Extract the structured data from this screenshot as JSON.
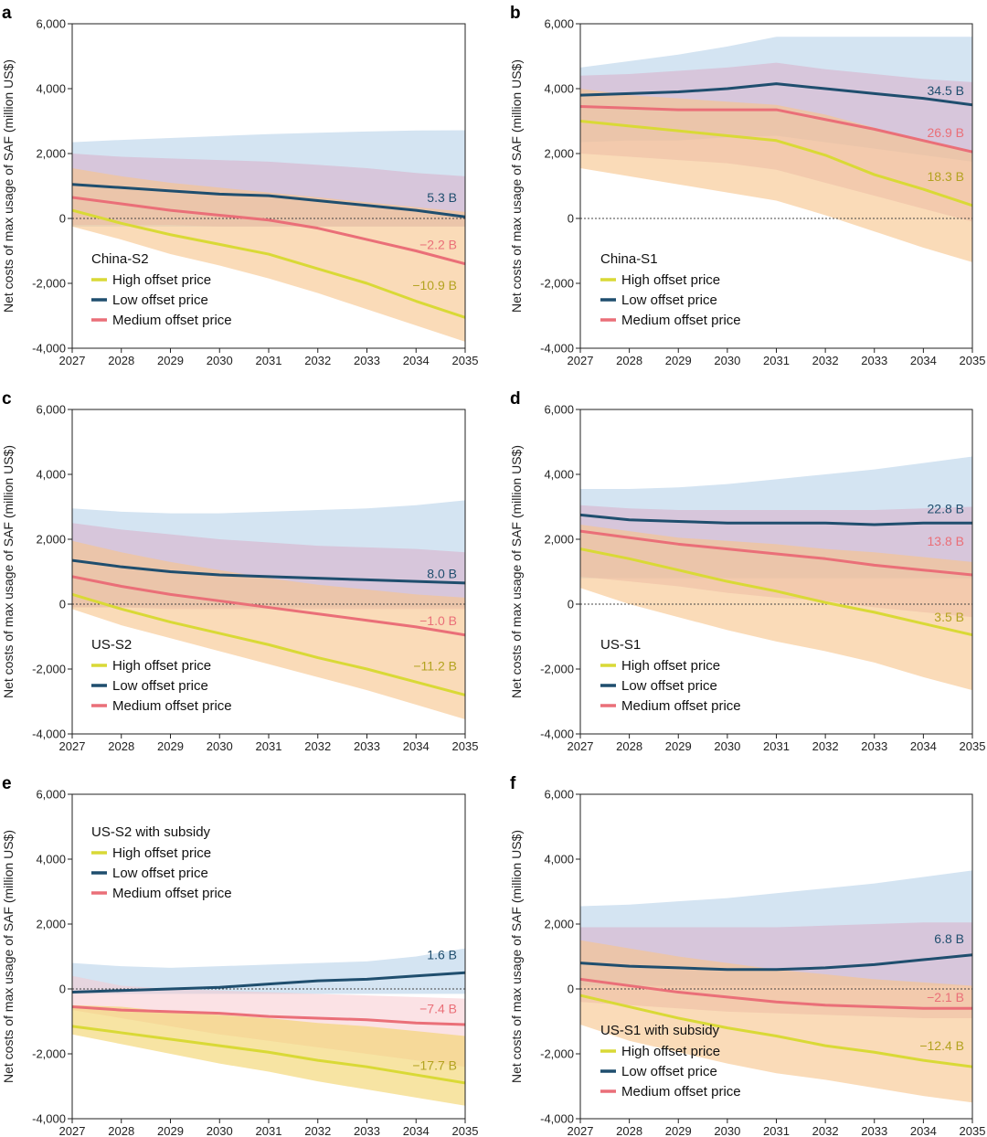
{
  "figure": {
    "ylabel": "Net costs of max usage of SAF (million US$)",
    "x_ticks": [
      "2027",
      "2028",
      "2029",
      "2030",
      "2031",
      "2032",
      "2033",
      "2034",
      "2035"
    ],
    "y_ticks": [
      "-4,000",
      "-2,000",
      "0",
      "2,000",
      "4,000",
      "6,000"
    ],
    "legend": {
      "high": "High offset price",
      "low": "Low offset price",
      "medium": "Medium offset price"
    },
    "colors": {
      "high": "#d9d936",
      "low": "#1f4e6e",
      "medium": "#ea6f78",
      "high_band": "#f7c58c",
      "low_band": "#a9c9e6",
      "medium_band": "#d9a8c4",
      "high_band_e": "#f2d36a",
      "medium_band_e": "#f8c6cc"
    }
  },
  "chart_data": [
    {
      "panel": "a",
      "type": "line",
      "scenario": "China-S2",
      "x": [
        2027,
        2028,
        2029,
        2030,
        2031,
        2032,
        2033,
        2034,
        2035
      ],
      "ylim": [
        -4000,
        6000
      ],
      "xlabel": "",
      "ylabel": "Net costs of max usage of SAF (million US$)",
      "series": [
        {
          "name": "High offset price",
          "key": "high",
          "values": [
            250,
            -150,
            -500,
            -800,
            -1100,
            -1550,
            -2000,
            -2550,
            -3050
          ],
          "band_low": [
            -250,
            -650,
            -1100,
            -1450,
            -1850,
            -2300,
            -2800,
            -3300,
            -3800
          ],
          "band_high": [
            1550,
            1300,
            1100,
            950,
            800,
            650,
            500,
            350,
            200
          ],
          "total": "-10.9 B"
        },
        {
          "name": "Low offset price",
          "key": "low",
          "values": [
            1050,
            950,
            850,
            750,
            700,
            550,
            400,
            250,
            50
          ],
          "band_low": [
            -250,
            -250,
            -250,
            -250,
            -250,
            -250,
            -250,
            -250,
            -250
          ],
          "band_high": [
            2350,
            2420,
            2480,
            2540,
            2600,
            2640,
            2680,
            2710,
            2720
          ],
          "total": "5.3 B"
        },
        {
          "name": "Medium offset price",
          "key": "medium",
          "values": [
            650,
            450,
            250,
            100,
            -50,
            -300,
            -650,
            -1000,
            -1400
          ],
          "band_low": [
            -200,
            -200,
            -200,
            -250,
            -250,
            -250,
            -250,
            -250,
            -250
          ],
          "band_high": [
            2000,
            1900,
            1850,
            1800,
            1750,
            1650,
            1550,
            1400,
            1300
          ],
          "total": "-2.2 B"
        }
      ]
    },
    {
      "panel": "b",
      "type": "line",
      "scenario": "China-S1",
      "x": [
        2027,
        2028,
        2029,
        2030,
        2031,
        2032,
        2033,
        2034,
        2035
      ],
      "ylim": [
        -4000,
        6000
      ],
      "xlabel": "",
      "ylabel": "Net costs of max usage of SAF (million US$)",
      "series": [
        {
          "name": "High offset price",
          "key": "high",
          "values": [
            3000,
            2850,
            2700,
            2550,
            2400,
            1950,
            1350,
            900,
            400
          ],
          "band_low": [
            1550,
            1300,
            1050,
            800,
            550,
            100,
            -400,
            -900,
            -1350
          ],
          "band_high": [
            4000,
            3800,
            3700,
            3600,
            3500,
            3200,
            2800,
            2400,
            2000
          ],
          "total": "18.3 B"
        },
        {
          "name": "Low offset price",
          "key": "low",
          "values": [
            3800,
            3850,
            3900,
            4000,
            4150,
            4000,
            3850,
            3700,
            3500
          ],
          "band_low": [
            2350,
            2400,
            2400,
            2500,
            2550,
            2350,
            2150,
            1950,
            1750
          ],
          "band_high": [
            4650,
            4850,
            5050,
            5300,
            5600,
            5600,
            5600,
            5600,
            5600
          ],
          "total": "34.5 B"
        },
        {
          "name": "Medium offset price",
          "key": "medium",
          "values": [
            3450,
            3400,
            3350,
            3350,
            3350,
            3050,
            2750,
            2400,
            2050
          ],
          "band_low": [
            2000,
            1900,
            1800,
            1700,
            1500,
            1100,
            700,
            300,
            -100
          ],
          "band_high": [
            4400,
            4450,
            4550,
            4650,
            4800,
            4600,
            4450,
            4300,
            4200
          ],
          "total": "26.9 B"
        }
      ]
    },
    {
      "panel": "c",
      "type": "line",
      "scenario": "US-S2",
      "x": [
        2027,
        2028,
        2029,
        2030,
        2031,
        2032,
        2033,
        2034,
        2035
      ],
      "ylim": [
        -4000,
        6000
      ],
      "xlabel": "",
      "ylabel": "Net costs of max usage of SAF (million US$)",
      "series": [
        {
          "name": "High offset price",
          "key": "high",
          "values": [
            300,
            -150,
            -550,
            -900,
            -1250,
            -1650,
            -2000,
            -2400,
            -2800
          ],
          "band_low": [
            -150,
            -650,
            -1050,
            -1450,
            -1850,
            -2250,
            -2650,
            -3100,
            -3550
          ],
          "band_high": [
            1950,
            1600,
            1300,
            1050,
            800,
            600,
            450,
            300,
            200
          ],
          "total": "-11.2 B"
        },
        {
          "name": "Low offset price",
          "key": "low",
          "values": [
            1350,
            1150,
            1000,
            900,
            850,
            800,
            750,
            700,
            650
          ],
          "band_low": [
            -100,
            -100,
            -100,
            -100,
            -100,
            -100,
            -100,
            -100,
            -100
          ],
          "band_high": [
            2950,
            2850,
            2800,
            2800,
            2850,
            2900,
            2950,
            3050,
            3200
          ],
          "total": "8.0 B"
        },
        {
          "name": "Medium offset price",
          "key": "medium",
          "values": [
            850,
            550,
            300,
            100,
            -100,
            -300,
            -500,
            -700,
            -950
          ],
          "band_low": [
            -100,
            -100,
            -150,
            -150,
            -150,
            -150,
            -150,
            -150,
            -150
          ],
          "band_high": [
            2500,
            2300,
            2150,
            2000,
            1900,
            1800,
            1750,
            1700,
            1600
          ],
          "total": "-1.0 B"
        }
      ]
    },
    {
      "panel": "d",
      "type": "line",
      "scenario": "US-S1",
      "x": [
        2027,
        2028,
        2029,
        2030,
        2031,
        2032,
        2033,
        2034,
        2035
      ],
      "ylim": [
        -4000,
        6000
      ],
      "xlabel": "",
      "ylabel": "Net costs of max usage of SAF (million US$)",
      "series": [
        {
          "name": "High offset price",
          "key": "high",
          "values": [
            1700,
            1400,
            1050,
            700,
            400,
            50,
            -250,
            -600,
            -950
          ],
          "band_low": [
            500,
            0,
            -400,
            -800,
            -1150,
            -1450,
            -1800,
            -2250,
            -2650
          ],
          "band_high": [
            2450,
            2250,
            2050,
            1950,
            1850,
            1700,
            1600,
            1450,
            1300
          ],
          "total": "3.5 B"
        },
        {
          "name": "Low offset price",
          "key": "low",
          "values": [
            2750,
            2600,
            2550,
            2500,
            2500,
            2500,
            2450,
            2500,
            2500
          ],
          "band_low": [
            800,
            800,
            800,
            800,
            800,
            800,
            800,
            800,
            800
          ],
          "band_high": [
            3550,
            3550,
            3600,
            3700,
            3850,
            4000,
            4150,
            4350,
            4550
          ],
          "total": "22.8 B"
        },
        {
          "name": "Medium offset price",
          "key": "medium",
          "values": [
            2250,
            2050,
            1850,
            1700,
            1550,
            1400,
            1200,
            1050,
            900
          ],
          "band_low": [
            850,
            700,
            550,
            350,
            200,
            100,
            -100,
            -250,
            -400
          ],
          "band_high": [
            3050,
            2950,
            2900,
            2900,
            2900,
            2900,
            2900,
            2950,
            3000
          ],
          "total": "13.8 B"
        }
      ]
    },
    {
      "panel": "e",
      "type": "line",
      "scenario": "US-S2 with subsidy",
      "x": [
        2027,
        2028,
        2029,
        2030,
        2031,
        2032,
        2033,
        2034,
        2035
      ],
      "ylim": [
        -4000,
        6000
      ],
      "xlabel": "",
      "ylabel": "Net costs of max usage of SAF (million US$)",
      "series": [
        {
          "name": "High offset price",
          "key": "high",
          "values": [
            -1150,
            -1350,
            -1550,
            -1750,
            -1950,
            -2200,
            -2400,
            -2650,
            -2900
          ],
          "band_low": [
            -1400,
            -1700,
            -2000,
            -2300,
            -2550,
            -2850,
            -3100,
            -3350,
            -3600
          ],
          "band_high": [
            -500,
            -550,
            -700,
            -800,
            -900,
            -1050,
            -1150,
            -1300,
            -1450
          ],
          "total": "-17.7 B"
        },
        {
          "name": "Low offset price",
          "key": "low",
          "values": [
            -100,
            -50,
            0,
            50,
            150,
            250,
            300,
            400,
            500
          ],
          "band_low": [
            -150,
            -150,
            -150,
            -150,
            -150,
            -150,
            -150,
            -150,
            -150
          ],
          "band_high": [
            800,
            700,
            650,
            700,
            750,
            800,
            850,
            1000,
            1250
          ],
          "total": "1.6 B"
        },
        {
          "name": "Medium offset price",
          "key": "medium",
          "values": [
            -550,
            -650,
            -700,
            -750,
            -850,
            -900,
            -950,
            -1050,
            -1100
          ],
          "band_low": [
            -650,
            -900,
            -1150,
            -1400,
            -1600,
            -1800,
            -2000,
            -2200,
            -2400
          ],
          "band_high": [
            400,
            100,
            0,
            -50,
            -100,
            -150,
            -200,
            -250,
            -300
          ],
          "total": "-7.4 B"
        }
      ]
    },
    {
      "panel": "f",
      "type": "line",
      "scenario": "US-S1 with subsidy",
      "x": [
        2027,
        2028,
        2029,
        2030,
        2031,
        2032,
        2033,
        2034,
        2035
      ],
      "ylim": [
        -4000,
        6000
      ],
      "xlabel": "",
      "ylabel": "Net costs of max usage of SAF (million US$)",
      "series": [
        {
          "name": "High offset price",
          "key": "high",
          "values": [
            -200,
            -550,
            -900,
            -1200,
            -1450,
            -1750,
            -1950,
            -2200,
            -2400
          ],
          "band_low": [
            -1100,
            -1600,
            -1950,
            -2300,
            -2600,
            -2800,
            -3050,
            -3300,
            -3500
          ],
          "band_high": [
            1500,
            1250,
            1000,
            800,
            600,
            450,
            300,
            200,
            100
          ],
          "total": "-12.4 B"
        },
        {
          "name": "Low offset price",
          "key": "low",
          "values": [
            800,
            700,
            650,
            600,
            600,
            650,
            750,
            900,
            1050
          ],
          "band_low": [
            100,
            100,
            100,
            100,
            100,
            100,
            100,
            100,
            100
          ],
          "band_high": [
            2550,
            2600,
            2700,
            2800,
            2950,
            3100,
            3250,
            3450,
            3650
          ],
          "total": "6.8 B"
        },
        {
          "name": "Medium offset price",
          "key": "medium",
          "values": [
            300,
            100,
            -100,
            -250,
            -400,
            -500,
            -550,
            -600,
            -600
          ],
          "band_low": [
            -400,
            -500,
            -600,
            -700,
            -750,
            -800,
            -850,
            -900,
            -900
          ],
          "band_high": [
            1900,
            1900,
            1900,
            1900,
            1900,
            1950,
            2000,
            2050,
            2050
          ],
          "total": "-2.1 B"
        }
      ]
    }
  ]
}
